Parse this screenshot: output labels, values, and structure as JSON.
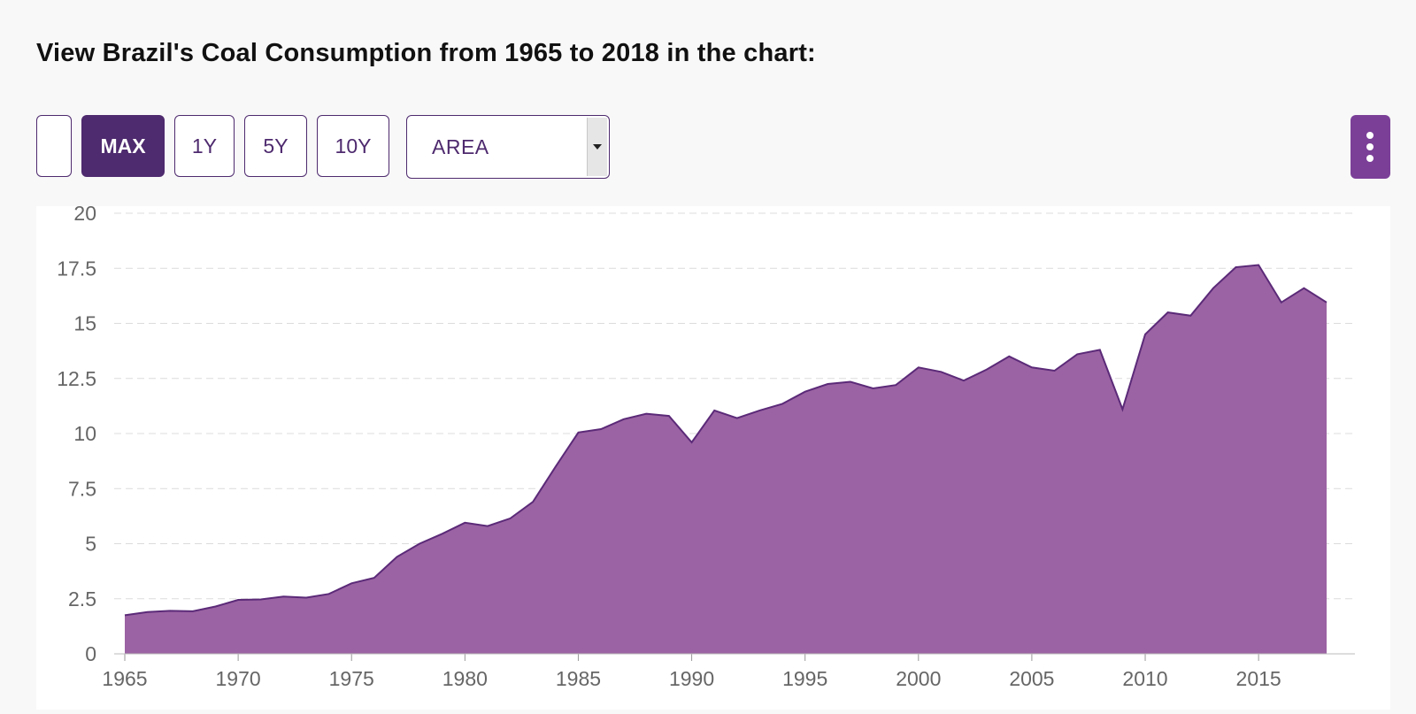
{
  "page": {
    "title": "View Brazil's Coal Consumption from 1965 to 2018 in the chart:"
  },
  "toolbar": {
    "range_buttons": [
      "MAX",
      "1Y",
      "5Y",
      "10Y"
    ],
    "active_range": "MAX",
    "chart_type_select": {
      "selected": "AREA"
    },
    "menu_icon": "vertical-dots-icon"
  },
  "colors": {
    "accent": "#4e2a6e",
    "area_fill": "#9b63a3",
    "area_line": "#5b2a78",
    "menu_button": "#7b3f98"
  },
  "chart_data": {
    "type": "area",
    "title": "",
    "xlabel": "",
    "ylabel": "",
    "ylim": [
      0,
      20
    ],
    "xlim": [
      1965,
      2018
    ],
    "yticks": [
      "0",
      "2.5",
      "5",
      "7.5",
      "10",
      "12.5",
      "15",
      "17.5",
      "20"
    ],
    "xticks": [
      "1965",
      "1970",
      "1975",
      "1980",
      "1985",
      "1990",
      "1995",
      "2000",
      "2005",
      "2010",
      "2015"
    ],
    "grid": true,
    "x": [
      1965,
      1966,
      1967,
      1968,
      1969,
      1970,
      1971,
      1972,
      1973,
      1974,
      1975,
      1976,
      1977,
      1978,
      1979,
      1980,
      1981,
      1982,
      1983,
      1984,
      1985,
      1986,
      1987,
      1988,
      1989,
      1990,
      1991,
      1992,
      1993,
      1994,
      1995,
      1996,
      1997,
      1998,
      1999,
      2000,
      2001,
      2002,
      2003,
      2004,
      2005,
      2006,
      2007,
      2008,
      2009,
      2010,
      2011,
      2012,
      2013,
      2014,
      2015,
      2016,
      2017,
      2018
    ],
    "series": [
      {
        "name": "Coal Consumption",
        "values": [
          1.75,
          1.9,
          1.95,
          1.93,
          2.15,
          2.45,
          2.47,
          2.6,
          2.55,
          2.72,
          3.2,
          3.45,
          4.4,
          5.0,
          5.45,
          5.95,
          5.8,
          6.15,
          6.9,
          8.5,
          10.05,
          10.2,
          10.65,
          10.9,
          10.8,
          9.6,
          11.05,
          10.7,
          11.05,
          11.35,
          11.9,
          12.25,
          12.35,
          12.05,
          12.2,
          13.0,
          12.8,
          12.4,
          12.9,
          13.5,
          13.0,
          12.85,
          13.6,
          13.8,
          11.1,
          14.5,
          15.5,
          15.35,
          16.6,
          17.55,
          17.65,
          15.95,
          16.6,
          15.95
        ]
      }
    ]
  }
}
